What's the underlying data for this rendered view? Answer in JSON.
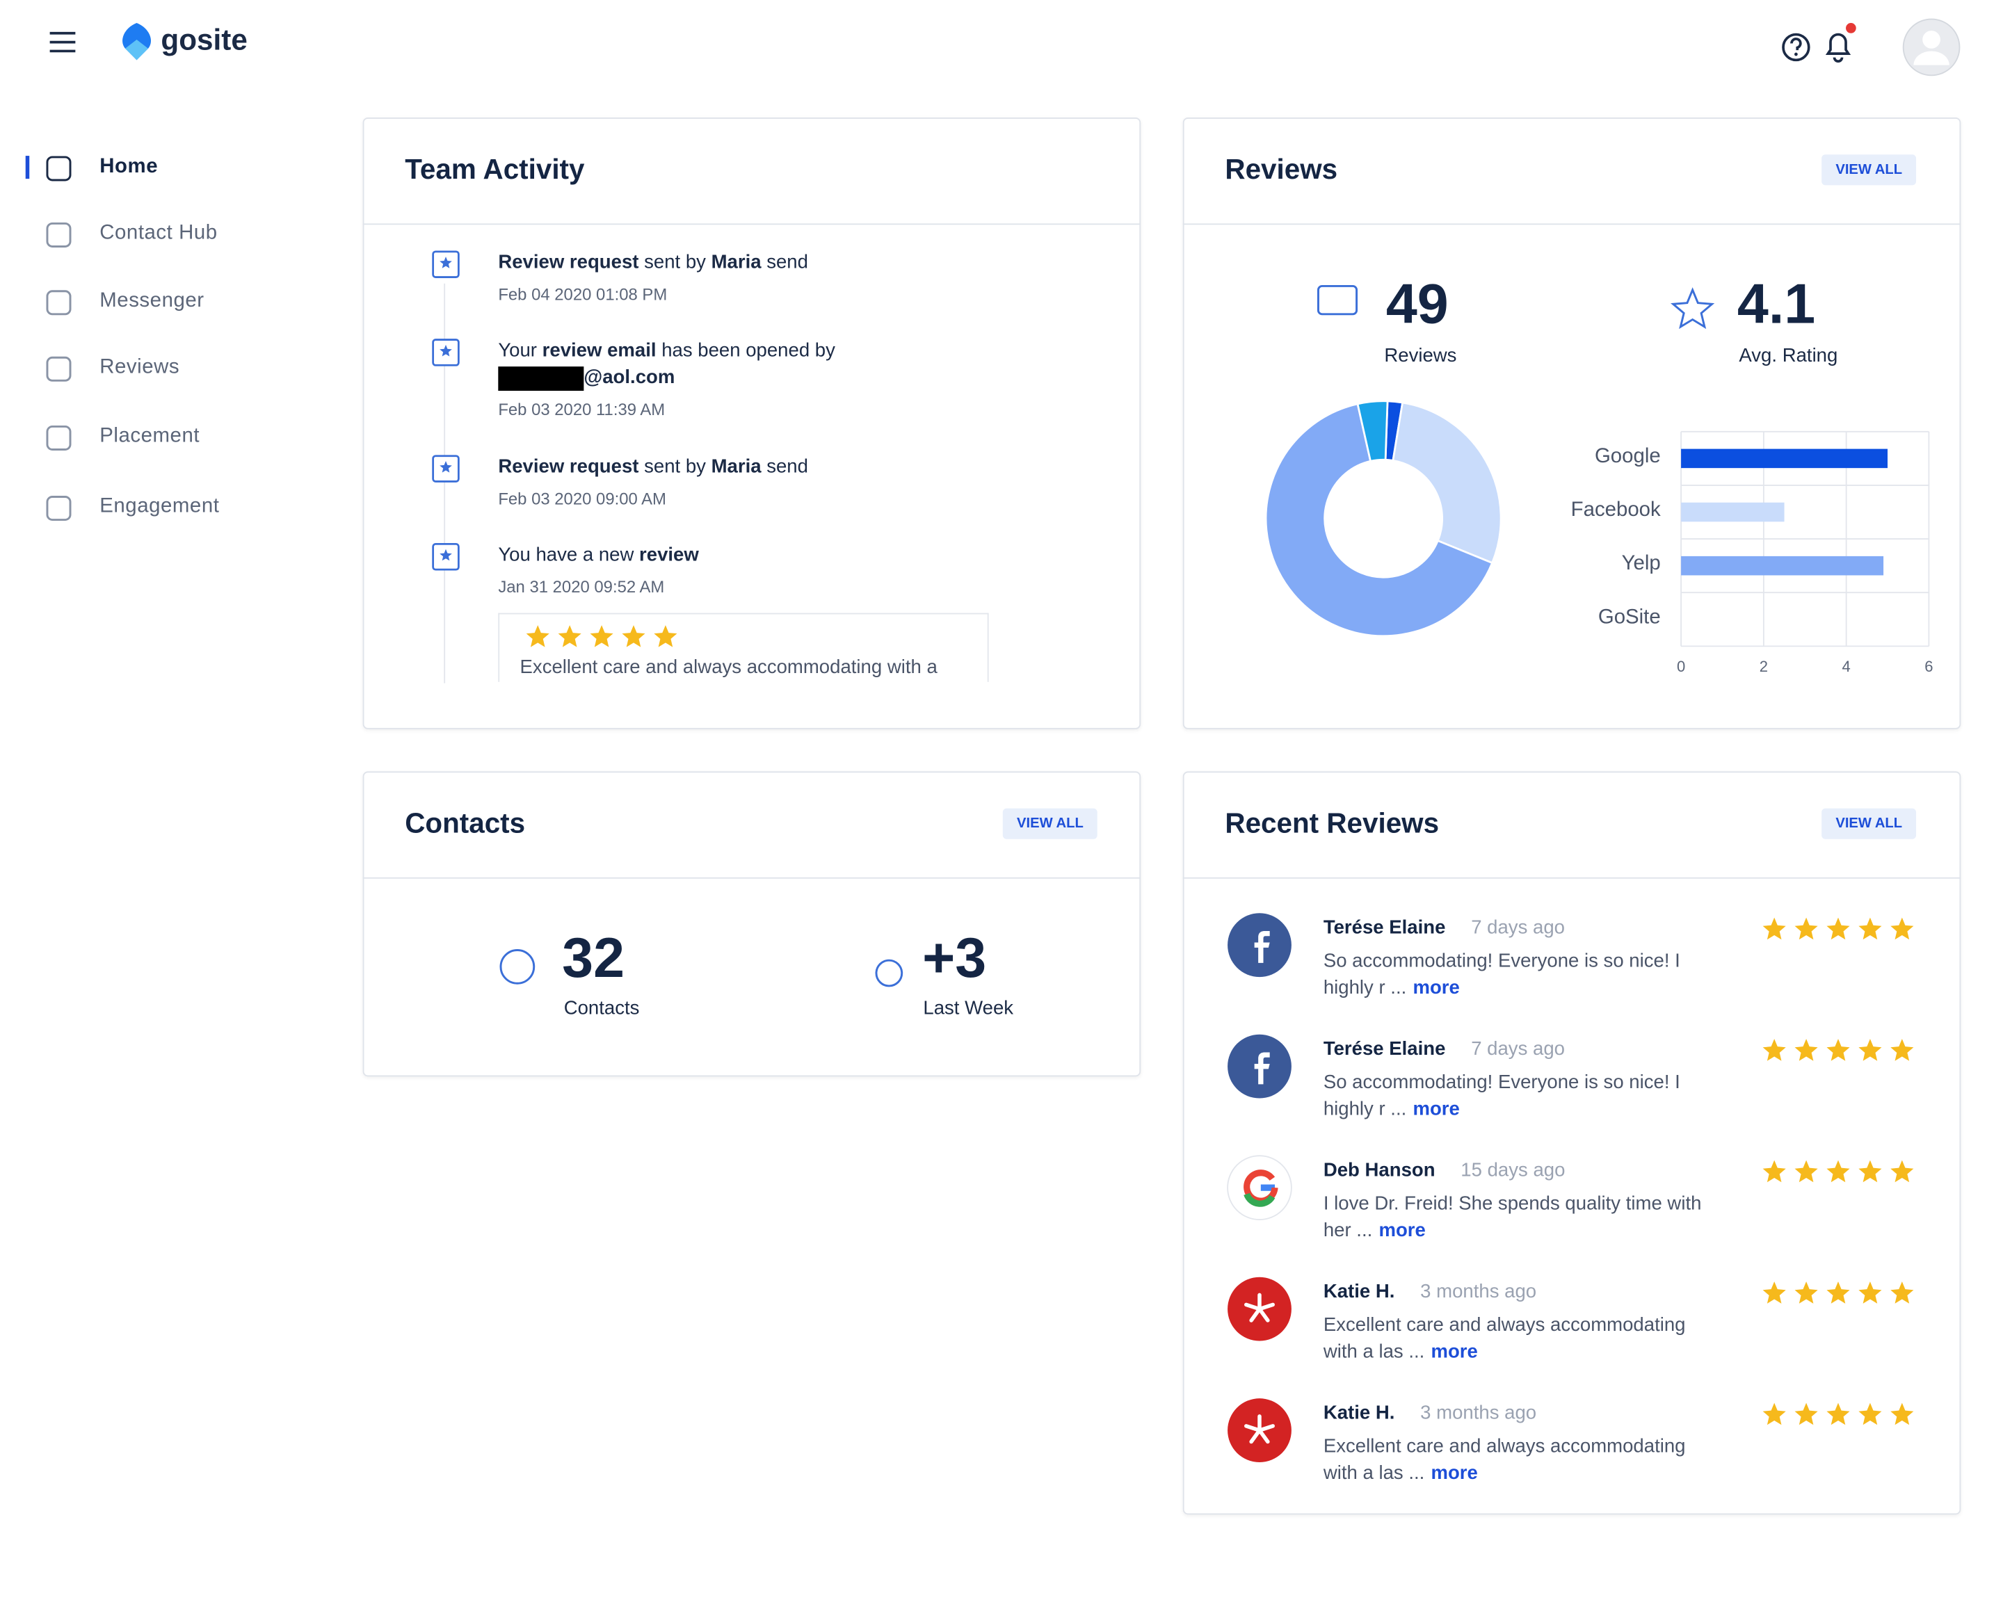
{
  "header": {
    "logo": "gosite"
  },
  "nav": [
    {
      "label": "Home",
      "active": true
    },
    {
      "label": "Contact Hub",
      "active": false
    },
    {
      "label": "Messenger",
      "active": false
    },
    {
      "label": "Reviews",
      "active": false
    },
    {
      "label": "Placement",
      "active": false
    },
    {
      "label": "Engagement",
      "active": false
    }
  ],
  "team_activity": {
    "title": "Team Activity",
    "items": [
      {
        "segments": [
          {
            "text": "Review request",
            "bold": true
          },
          {
            "text": " sent by ",
            "bold": false
          },
          {
            "text": "Maria",
            "bold": true
          },
          {
            "text": " send",
            "bold": false
          }
        ],
        "date": "Feb 04 2020 01:08 PM"
      },
      {
        "segments": [
          {
            "text": "Your ",
            "bold": false
          },
          {
            "text": "review email",
            "bold": true
          },
          {
            "text": " has been opened by",
            "bold": false
          }
        ],
        "line2": "@aol.com",
        "date": "Feb 03 2020 11:39 AM"
      },
      {
        "segments": [
          {
            "text": "Review request",
            "bold": true
          },
          {
            "text": " sent by ",
            "bold": false
          },
          {
            "text": "Maria",
            "bold": true
          },
          {
            "text": " send",
            "bold": false
          }
        ],
        "date": "Feb 03 2020 09:00 AM"
      },
      {
        "segments": [
          {
            "text": "You have a new ",
            "bold": false
          },
          {
            "text": "review",
            "bold": true
          }
        ],
        "date": "Jan 31 2020 09:52 AM",
        "review": {
          "rating": 5,
          "text": "Excellent care and always accommodating with a"
        }
      }
    ]
  },
  "reviews": {
    "title": "Reviews",
    "view_all": "VIEW ALL",
    "count": 49,
    "count_label": "Reviews",
    "avg": 4.1,
    "avg_label": "Avg. Rating",
    "donut": {
      "type": "pie",
      "categories": [
        "Google",
        "Facebook",
        "Yelp",
        "GoSite"
      ],
      "values": [
        1,
        14,
        32,
        2
      ],
      "colors": [
        "#0b4fe0",
        "#c9dcfb",
        "#82aaf6",
        "#1aa3e8"
      ]
    },
    "bar": {
      "type": "bar",
      "categories": [
        "Google",
        "Facebook",
        "Yelp",
        "GoSite"
      ],
      "values": [
        5,
        2.5,
        4.9,
        0
      ],
      "colors": [
        "#0b4fe0",
        "#c9dcfb",
        "#82aaf6",
        "#1aa3e8"
      ],
      "xlim": [
        0,
        6
      ],
      "xticks": [
        0,
        2,
        4,
        6
      ],
      "grid": true
    }
  },
  "contacts": {
    "title": "Contacts",
    "view_all": "VIEW ALL",
    "count": 32,
    "count_label": "Contacts",
    "new": "+3",
    "new_label": "Last Week"
  },
  "recent_reviews": {
    "title": "Recent Reviews",
    "view_all": "VIEW ALL",
    "items": [
      {
        "name": "Terése Elaine",
        "source": "facebook",
        "ago": "7 days ago",
        "text": "So accommodating! Everyone is so nice! I highly r ...",
        "more": "more",
        "rating": 5
      },
      {
        "name": "Terése Elaine",
        "source": "facebook",
        "ago": "7 days ago",
        "text": "So accommodating! Everyone is so nice! I highly r ...",
        "more": "more",
        "rating": 5
      },
      {
        "name": "Deb Hanson",
        "source": "google",
        "ago": "15 days ago",
        "text": "I love Dr. Freid! She spends quality time with her ...",
        "more": "more",
        "rating": 5
      },
      {
        "name": "Katie H.",
        "source": "yelp",
        "ago": "3 months ago",
        "text": "Excellent care and always accommodating with a las ...",
        "more": "more",
        "rating": 5
      },
      {
        "name": "Katie H.",
        "source": "yelp",
        "ago": "3 months ago",
        "text": "Excellent care and always accommodating with a las ...",
        "more": "more",
        "rating": 5
      }
    ]
  }
}
